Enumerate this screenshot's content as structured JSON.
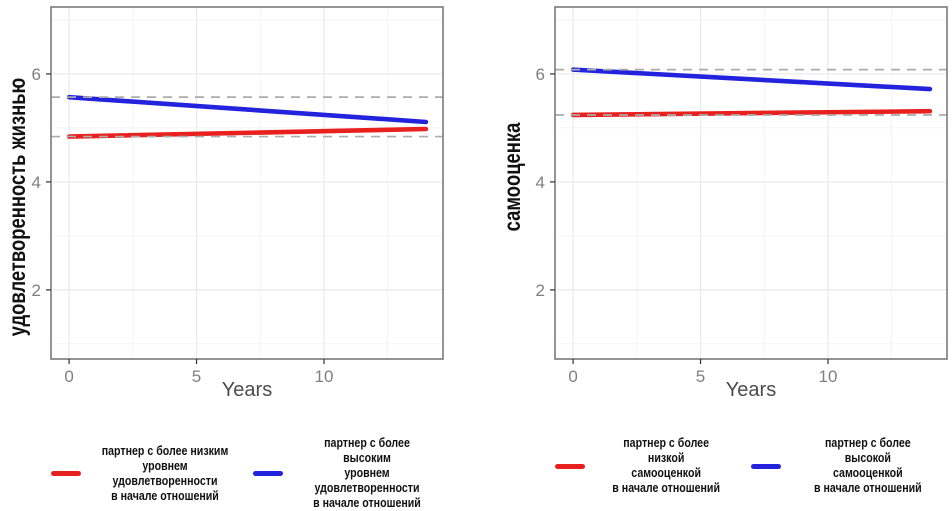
{
  "colors": {
    "red": "#E8201E",
    "blue": "#2323DD",
    "reference_dash": "#ABABAB",
    "grid_major": "#EAE8F0",
    "grid_minor": "#F4F2F8",
    "panel_border": "#7A7A7A",
    "tick_mark": "#333333",
    "tick_label": "#7F7F7F",
    "axis_title": "#4C4C4C",
    "background": "#FFFFFF"
  },
  "chart_data": [
    {
      "type": "line",
      "title": "",
      "xlabel": "Years",
      "ylabel": "удовлетворенность жизнью",
      "x_ticks": [
        0,
        5,
        10
      ],
      "y_ticks": [
        2,
        4,
        6
      ],
      "x_minor_ticks": [
        2.5,
        7.5,
        12.5
      ],
      "y_minor_ticks": [
        1,
        3,
        5,
        7
      ],
      "xlim": [
        -0.71,
        14.67
      ],
      "ylim": [
        0.72,
        7.24
      ],
      "grid": true,
      "legend_position": "bottom",
      "series": [
        {
          "name": "partner-lower-initial",
          "label": "партнер с более низким\nуровнем удовлетворенности\nв начале отношений",
          "color_key": "red",
          "x": [
            0,
            14
          ],
          "values": [
            4.84,
            4.98
          ]
        },
        {
          "name": "partner-higher-initial",
          "label": "партнер с более высоким\nуровнем удовлетворенности\nв начале отношений",
          "color_key": "blue",
          "x": [
            0,
            14
          ],
          "values": [
            5.57,
            5.11
          ]
        }
      ],
      "reference_lines": [
        {
          "y": 5.57,
          "style": "dashed"
        },
        {
          "y": 4.84,
          "style": "dashed"
        }
      ]
    },
    {
      "type": "line",
      "title": "",
      "xlabel": "Years",
      "ylabel": "самооценка",
      "x_ticks": [
        0,
        5,
        10
      ],
      "y_ticks": [
        2,
        4,
        6
      ],
      "x_minor_ticks": [
        2.5,
        7.5,
        12.5
      ],
      "y_minor_ticks": [
        1,
        3,
        5,
        7
      ],
      "xlim": [
        -0.71,
        14.67
      ],
      "ylim": [
        0.72,
        7.24
      ],
      "grid": true,
      "legend_position": "bottom",
      "series": [
        {
          "name": "partner-lower-initial",
          "label": "партнер с более низкой\nсамооценкой\nв начале отношений",
          "color_key": "red",
          "x": [
            0,
            14
          ],
          "values": [
            5.24,
            5.31
          ]
        },
        {
          "name": "partner-higher-initial",
          "label": "партнер с более высокой\nсамооценкой\nв начале отношений",
          "color_key": "blue",
          "x": [
            0,
            14
          ],
          "values": [
            6.08,
            5.72
          ]
        }
      ],
      "reference_lines": [
        {
          "y": 6.08,
          "style": "dashed"
        },
        {
          "y": 5.24,
          "style": "dashed"
        }
      ]
    }
  ]
}
